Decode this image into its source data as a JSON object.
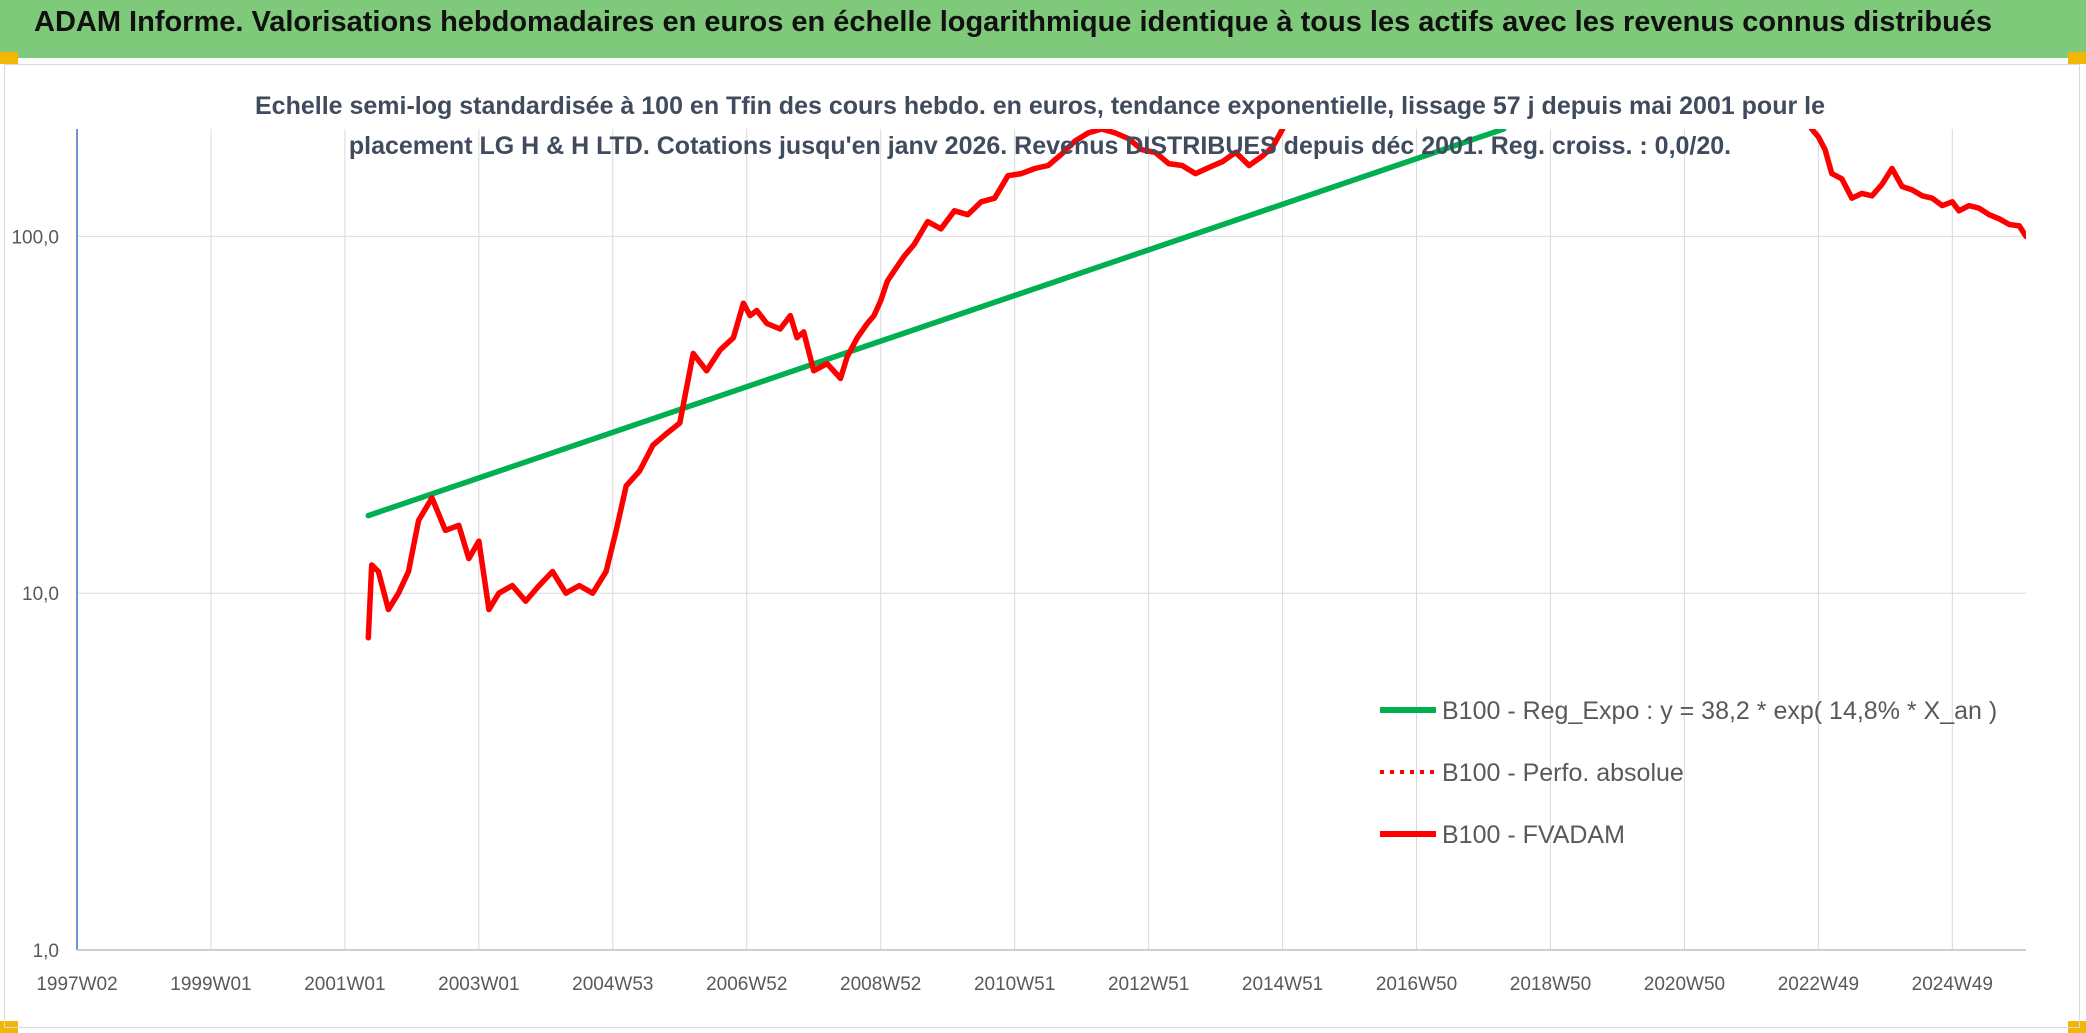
{
  "header": {
    "title": "ADAM Informe. Valorisations hebdomadaires en euros en échelle logarithmique identique à tous les actifs avec les revenus connus distribués"
  },
  "chart_data": {
    "type": "line",
    "title": "Echelle semi-log standardisée à 100 en Tfin des cours hebdo. en euros, tendance exponentielle, lissage 57 j depuis mai 2001 pour le placement LG H & H LTD. Cotations jusqu'en janv 2026. Revenus DISTRIBUES depuis déc 2001. Reg. croiss. : 0,0/20.",
    "xlabel": "",
    "ylabel": "",
    "y_scale": "log",
    "ylim": [
      1,
      200
    ],
    "xlim": [
      1997.0,
      2026.1
    ],
    "x_ticks": [
      "1997W02",
      "1999W01",
      "2001W01",
      "2003W01",
      "2004W53",
      "2006W52",
      "2008W52",
      "2010W51",
      "2012W51",
      "2014W51",
      "2016W50",
      "2018W50",
      "2020W50",
      "2022W49",
      "2024W49"
    ],
    "x_tick_values": [
      1997.0,
      1999.0,
      2001.0,
      2003.0,
      2005.0,
      2007.0,
      2009.0,
      2011.0,
      2013.0,
      2015.0,
      2017.0,
      2019.0,
      2021.0,
      2023.0,
      2025.0
    ],
    "y_ticks": [
      "1,0",
      "10,0",
      "100,0"
    ],
    "y_tick_values": [
      1,
      10,
      100
    ],
    "grid": true,
    "legend_position": "bottom-right",
    "series": [
      {
        "name": "B100 - Reg_Expo : y = 38,2 * exp( 14,8% *  X_an )",
        "color": "#00b050",
        "style": "solid",
        "x": [
          2001.35,
          2018.3
        ],
        "y": [
          16.5,
          200
        ]
      },
      {
        "name": "B100 - Perfo. absolue",
        "color": "#ff0000",
        "style": "dotted",
        "x": [],
        "y": []
      },
      {
        "name": "B100 - FVADAM",
        "color": "#ff0000",
        "style": "solid",
        "x": [
          2001.35,
          2001.4,
          2001.5,
          2001.65,
          2001.8,
          2001.95,
          2002.1,
          2002.3,
          2002.5,
          2002.7,
          2002.85,
          2003.0,
          2003.15,
          2003.3,
          2003.5,
          2003.7,
          2003.9,
          2004.1,
          2004.3,
          2004.5,
          2004.7,
          2004.9,
          2005.05,
          2005.2,
          2005.4,
          2005.6,
          2005.8,
          2006.0,
          2006.2,
          2006.4,
          2006.6,
          2006.8,
          2006.95,
          2007.05,
          2007.15,
          2007.3,
          2007.5,
          2007.65,
          2007.75,
          2007.85,
          2008.0,
          2008.2,
          2008.4,
          2008.5,
          2008.65,
          2008.8,
          2008.9,
          2009.0,
          2009.1,
          2009.2,
          2009.35,
          2009.5,
          2009.7,
          2009.9,
          2010.1,
          2010.3,
          2010.5,
          2010.7,
          2010.9,
          2011.1,
          2011.3,
          2011.5,
          2011.7,
          2011.9,
          2012.1,
          2012.3,
          2012.5,
          2012.7,
          2012.9,
          2013.1,
          2013.3,
          2013.5,
          2013.7,
          2013.9,
          2014.1,
          2014.3,
          2014.5,
          2014.7,
          2014.85,
          2015.0
        ],
        "y": [
          7.5,
          12.0,
          11.5,
          9.0,
          10.0,
          11.5,
          16.0,
          18.5,
          15.0,
          15.5,
          12.5,
          14.0,
          9.0,
          10.0,
          10.5,
          9.5,
          10.5,
          11.5,
          10.0,
          10.5,
          10.0,
          11.5,
          15.0,
          20.0,
          22.0,
          26.0,
          28.0,
          30.0,
          47.0,
          42.0,
          48.0,
          52.0,
          65.0,
          60.0,
          62.0,
          57.0,
          55.0,
          60.0,
          52.0,
          54.0,
          42.0,
          44.0,
          40.0,
          46.0,
          52.0,
          57.0,
          60.0,
          66.0,
          75.0,
          80.0,
          88.0,
          95.0,
          110.0,
          105.0,
          118.0,
          115.0,
          125.0,
          128.0,
          148.0,
          150.0,
          155.0,
          158.0,
          170.0,
          185.0,
          195.0,
          200.0,
          195.0,
          188.0,
          175.0,
          172.0,
          160.0,
          158.0,
          150.0,
          156.0,
          162.0,
          172.0,
          158.0,
          168.0,
          178.0,
          200.0
        ]
      },
      {
        "name": "",
        "color": "#ff0000",
        "style": "solid",
        "x": [
          2022.9,
          2023.0,
          2023.1,
          2023.2,
          2023.35,
          2023.5,
          2023.65,
          2023.8,
          2023.95,
          2024.1,
          2024.25,
          2024.4,
          2024.55,
          2024.7,
          2024.85,
          2025.0,
          2025.1,
          2025.25,
          2025.4,
          2025.55,
          2025.7,
          2025.85,
          2026.0,
          2026.1
        ],
        "y": [
          200.0,
          190.0,
          175.0,
          150.0,
          145.0,
          128.0,
          132.0,
          130.0,
          140.0,
          155.0,
          138.0,
          135.0,
          130.0,
          128.0,
          122.0,
          125.0,
          118.0,
          122.0,
          120.0,
          115.0,
          112.0,
          108.0,
          107.0,
          100.0
        ]
      }
    ]
  }
}
